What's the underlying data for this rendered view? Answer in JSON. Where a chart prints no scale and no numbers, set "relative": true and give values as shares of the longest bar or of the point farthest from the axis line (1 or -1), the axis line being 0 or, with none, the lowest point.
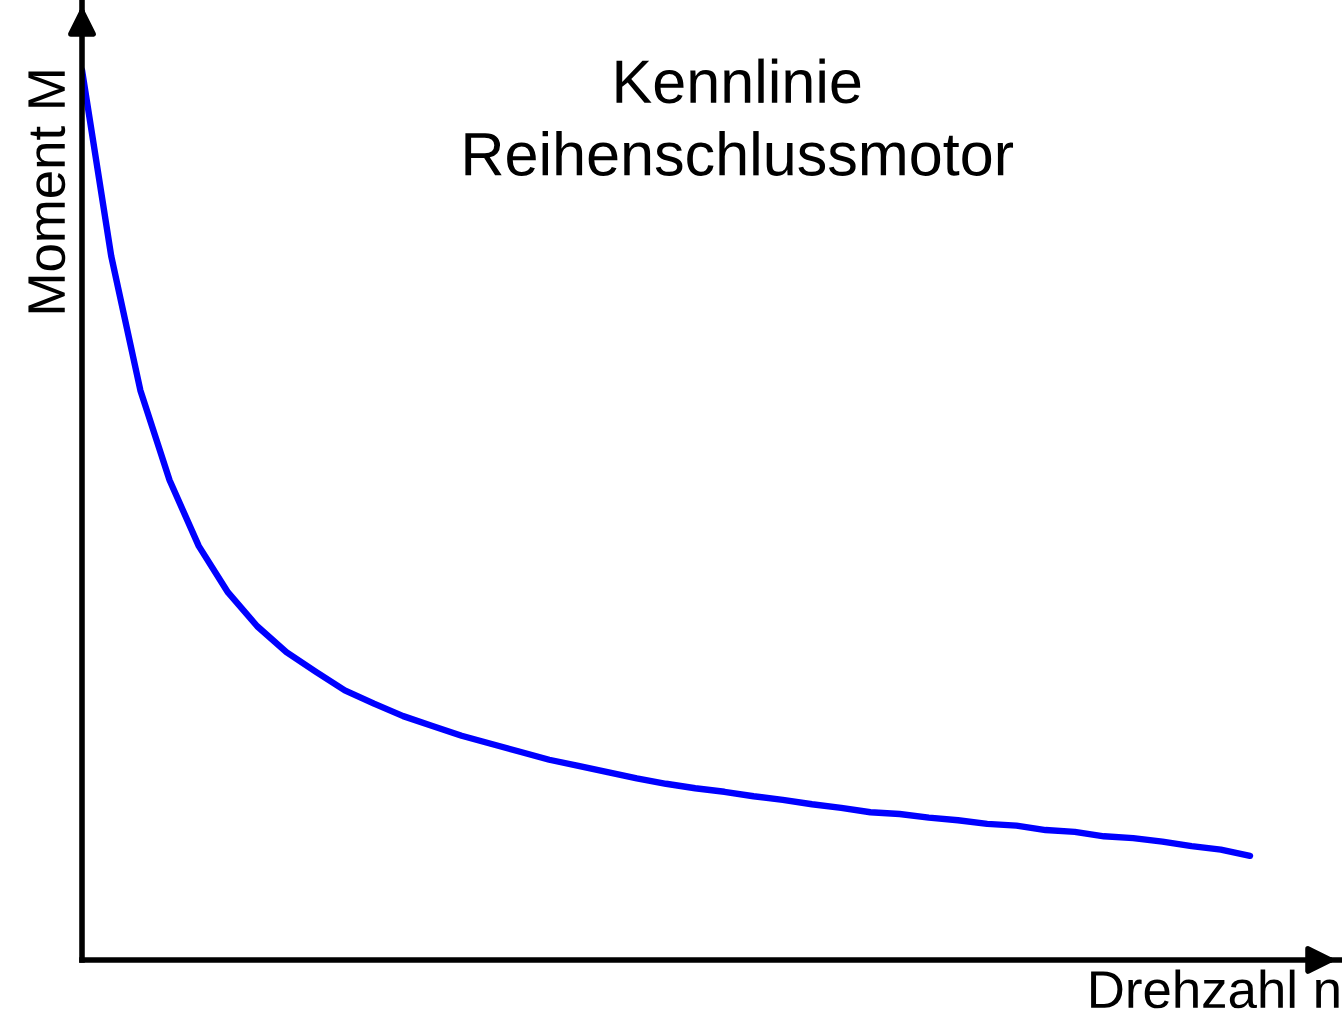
{
  "chart_data": {
    "type": "line",
    "title": "Kennlinie\nReihenschlussmotor",
    "xlabel": "Drehzahl n",
    "ylabel": "Moment M",
    "relative": true,
    "categories": [
      null,
      null,
      null,
      null,
      null,
      null,
      null,
      null,
      null,
      null,
      null,
      null,
      null,
      null,
      null,
      null,
      null,
      null,
      null,
      null,
      null,
      null,
      null,
      null,
      null,
      null,
      null,
      null,
      null,
      null,
      null,
      null,
      null,
      null,
      null,
      null,
      null,
      null,
      null,
      null,
      null
    ],
    "series": [
      {
        "color": "#0000ff",
        "values": [
          1.0,
          0.791,
          0.64,
          0.539,
          0.465,
          0.413,
          0.375,
          0.346,
          0.324,
          0.303,
          0.288,
          0.274,
          0.263,
          0.252,
          0.243,
          0.234,
          0.225,
          0.218,
          0.211,
          0.204,
          0.198,
          0.193,
          0.189,
          0.184,
          0.18,
          0.175,
          0.171,
          0.166,
          0.164,
          0.16,
          0.157,
          0.153,
          0.151,
          0.146,
          0.144,
          0.139,
          0.137,
          0.133,
          0.128,
          0.124,
          0.117
        ]
      }
    ],
    "grid": false,
    "legend": false,
    "marker": "none",
    "line_style": "solid"
  }
}
